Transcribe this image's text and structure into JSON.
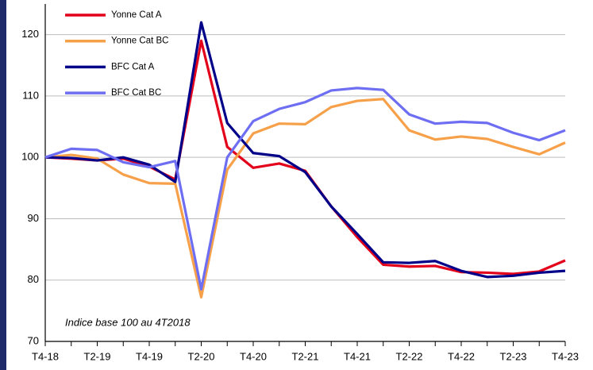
{
  "chart_data": {
    "type": "line",
    "annotation": "Indice base 100 au 4T2018",
    "categories": [
      "T4-18",
      null,
      "T2-19",
      null,
      "T4-19",
      null,
      "T2-20",
      null,
      "T4-20",
      null,
      "T2-21",
      null,
      "T4-21",
      null,
      "T2-22",
      null,
      "T4-22",
      null,
      "T2-23",
      null,
      "T4-23"
    ],
    "series": [
      {
        "name": "Yonne  Cat A",
        "color": "#e2001a",
        "values": [
          100,
          99.8,
          99.5,
          99.8,
          98.5,
          96.4,
          119,
          101.7,
          98.3,
          99,
          97.8,
          92,
          87,
          82.5,
          82.2,
          82.3,
          81.3,
          81.2,
          81,
          81.4,
          83.2
        ]
      },
      {
        "name": "Yonne  Cat BC",
        "color": "#f7a04a",
        "values": [
          100,
          100.4,
          99.8,
          97.2,
          95.8,
          95.7,
          77.2,
          98,
          103.9,
          105.5,
          105.4,
          108.2,
          109.2,
          109.5,
          104.4,
          102.9,
          103.4,
          103,
          101.7,
          100.5,
          102.4
        ]
      },
      {
        "name": "BFC Cat A",
        "color": "#000088",
        "values": [
          100,
          99.9,
          99.5,
          100,
          98.8,
          96,
          122,
          105.6,
          100.7,
          100.2,
          97.6,
          92,
          87.5,
          82.9,
          82.8,
          83.1,
          81.5,
          80.5,
          80.7,
          81.2,
          81.5
        ]
      },
      {
        "name": "BFC Cat BC",
        "color": "#6e6ef2",
        "values": [
          100,
          101.4,
          101.2,
          99.2,
          98.4,
          99.4,
          78.5,
          100,
          105.9,
          107.9,
          109,
          110.9,
          111.3,
          111,
          107,
          105.5,
          105.8,
          105.6,
          104,
          102.8,
          104.4
        ]
      }
    ],
    "ylim": [
      70,
      125
    ],
    "yticks": [
      70,
      80,
      90,
      100,
      110,
      120
    ],
    "grid": true
  }
}
